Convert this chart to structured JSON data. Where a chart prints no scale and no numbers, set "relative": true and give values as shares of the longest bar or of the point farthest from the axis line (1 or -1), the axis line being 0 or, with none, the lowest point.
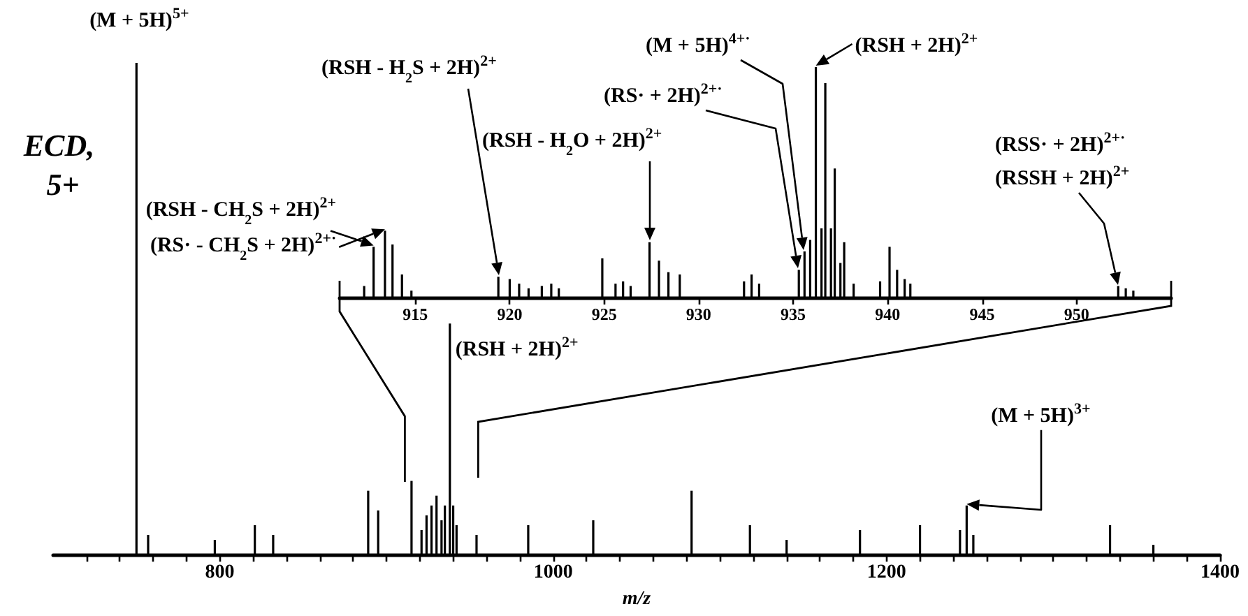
{
  "chart_data": [
    {
      "type": "bar",
      "relative": true,
      "xlabel": "m/z",
      "xlim": [
        700,
        1400
      ],
      "color": "#000000",
      "xticks": [
        {
          "value": 720,
          "label": null
        },
        {
          "value": 740,
          "label": null
        },
        {
          "value": 760,
          "label": null
        },
        {
          "value": 780,
          "label": null
        },
        800,
        {
          "value": 820,
          "label": null
        },
        {
          "value": 840,
          "label": null
        },
        {
          "value": 860,
          "label": null
        },
        {
          "value": 880,
          "label": null
        },
        {
          "value": 900,
          "label": null
        },
        {
          "value": 920,
          "label": null
        },
        {
          "value": 940,
          "label": null
        },
        {
          "value": 960,
          "label": null
        },
        {
          "value": 980,
          "label": null
        },
        1000,
        {
          "value": 1020,
          "label": null
        },
        {
          "value": 1040,
          "label": null
        },
        {
          "value": 1060,
          "label": null
        },
        {
          "value": 1080,
          "label": null
        },
        {
          "value": 1100,
          "label": null
        },
        {
          "value": 1120,
          "label": null
        },
        {
          "value": 1140,
          "label": null
        },
        {
          "value": 1160,
          "label": null
        },
        {
          "value": 1180,
          "label": null
        },
        1200,
        {
          "value": 1220,
          "label": null
        },
        {
          "value": 1240,
          "label": null
        },
        {
          "value": 1260,
          "label": null
        },
        {
          "value": 1280,
          "label": null
        },
        {
          "value": 1300,
          "label": null
        },
        {
          "value": 1320,
          "label": null
        },
        {
          "value": 1340,
          "label": null
        },
        {
          "value": 1360,
          "label": null
        },
        {
          "value": 1380,
          "label": null
        },
        1400
      ],
      "x": [
        750,
        757,
        797,
        821,
        832,
        889,
        895,
        915,
        921,
        924,
        927,
        930,
        933,
        935,
        938,
        940,
        942,
        954,
        985,
        1024,
        1083,
        1118,
        1140,
        1184,
        1220,
        1244,
        1248,
        1252,
        1334,
        1360
      ],
      "values": [
        1,
        0.04,
        0.03,
        0.06,
        0.04,
        0.13,
        0.09,
        0.15,
        0.05,
        0.08,
        0.1,
        0.12,
        0.07,
        0.1,
        0.47,
        0.1,
        0.06,
        0.04,
        0.06,
        0.07,
        0.13,
        0.06,
        0.03,
        0.05,
        0.06,
        0.05,
        0.1,
        0.04,
        0.06,
        0.02
      ],
      "annotations": [
        "ECD, 5+",
        {
          "text": "(M + 5H)$^{5+}$",
          "x": 750,
          "y": 1
        },
        {
          "text": "(RSH + 2H)$^{2+}$",
          "x": 938,
          "y": 0.47
        },
        {
          "text": "(M + 5H)$^{3+}$",
          "x": 1248,
          "y": 0.1
        }
      ]
    },
    {
      "type": "bar",
      "relative": true,
      "xlim": [
        911,
        955
      ],
      "color": "#000000",
      "xticks": [
        915,
        920,
        925,
        930,
        935,
        940,
        945,
        950
      ],
      "x": [
        912.3,
        912.8,
        913.4,
        913.8,
        914.3,
        914.8,
        919.4,
        920.0,
        920.5,
        921.0,
        921.7,
        922.2,
        922.6,
        924.9,
        925.6,
        926.0,
        926.4,
        927.4,
        927.9,
        928.4,
        929.0,
        932.4,
        932.8,
        933.2,
        935.3,
        935.6,
        935.9,
        936.2,
        936.5,
        936.7,
        937.0,
        937.2,
        937.5,
        937.7,
        938.2,
        939.6,
        940.1,
        940.5,
        940.9,
        941.2,
        952.2,
        952.6,
        953.0
      ],
      "values": [
        0.05,
        0.22,
        0.29,
        0.23,
        0.1,
        0.03,
        0.09,
        0.08,
        0.06,
        0.04,
        0.05,
        0.06,
        0.04,
        0.17,
        0.06,
        0.07,
        0.05,
        0.24,
        0.16,
        0.11,
        0.1,
        0.07,
        0.1,
        0.06,
        0.12,
        0.2,
        0.25,
        1,
        0.3,
        0.93,
        0.3,
        0.56,
        0.15,
        0.24,
        0.06,
        0.07,
        0.22,
        0.12,
        0.08,
        0.06,
        0.05,
        0.04,
        0.03
      ],
      "annotations": [
        {
          "text": "(RSH - CH$_{2}$S + 2H)$^{2+}$",
          "x": 912.8,
          "y": 0.22
        },
        {
          "text": "(RS· - CH$_{2}$S + 2H)$^{2+·}$",
          "x": 913.4,
          "y": 0.29
        },
        "(RSH - H$_{2}$S + 2H)$^{2+}$",
        "(RSH - H$_{2}$O + 2H)$^{2+}$",
        "(RS· + 2H)$^{2+·}$",
        "(M + 5H)$^{4+·}$",
        {
          "text": "(RSH + 2H)$^{2+}$",
          "x": 936.2,
          "y": 1
        },
        "(RSS· + 2H)$^{2+·}$",
        "(RSSH + 2H)$^{2+}$"
      ]
    }
  ]
}
